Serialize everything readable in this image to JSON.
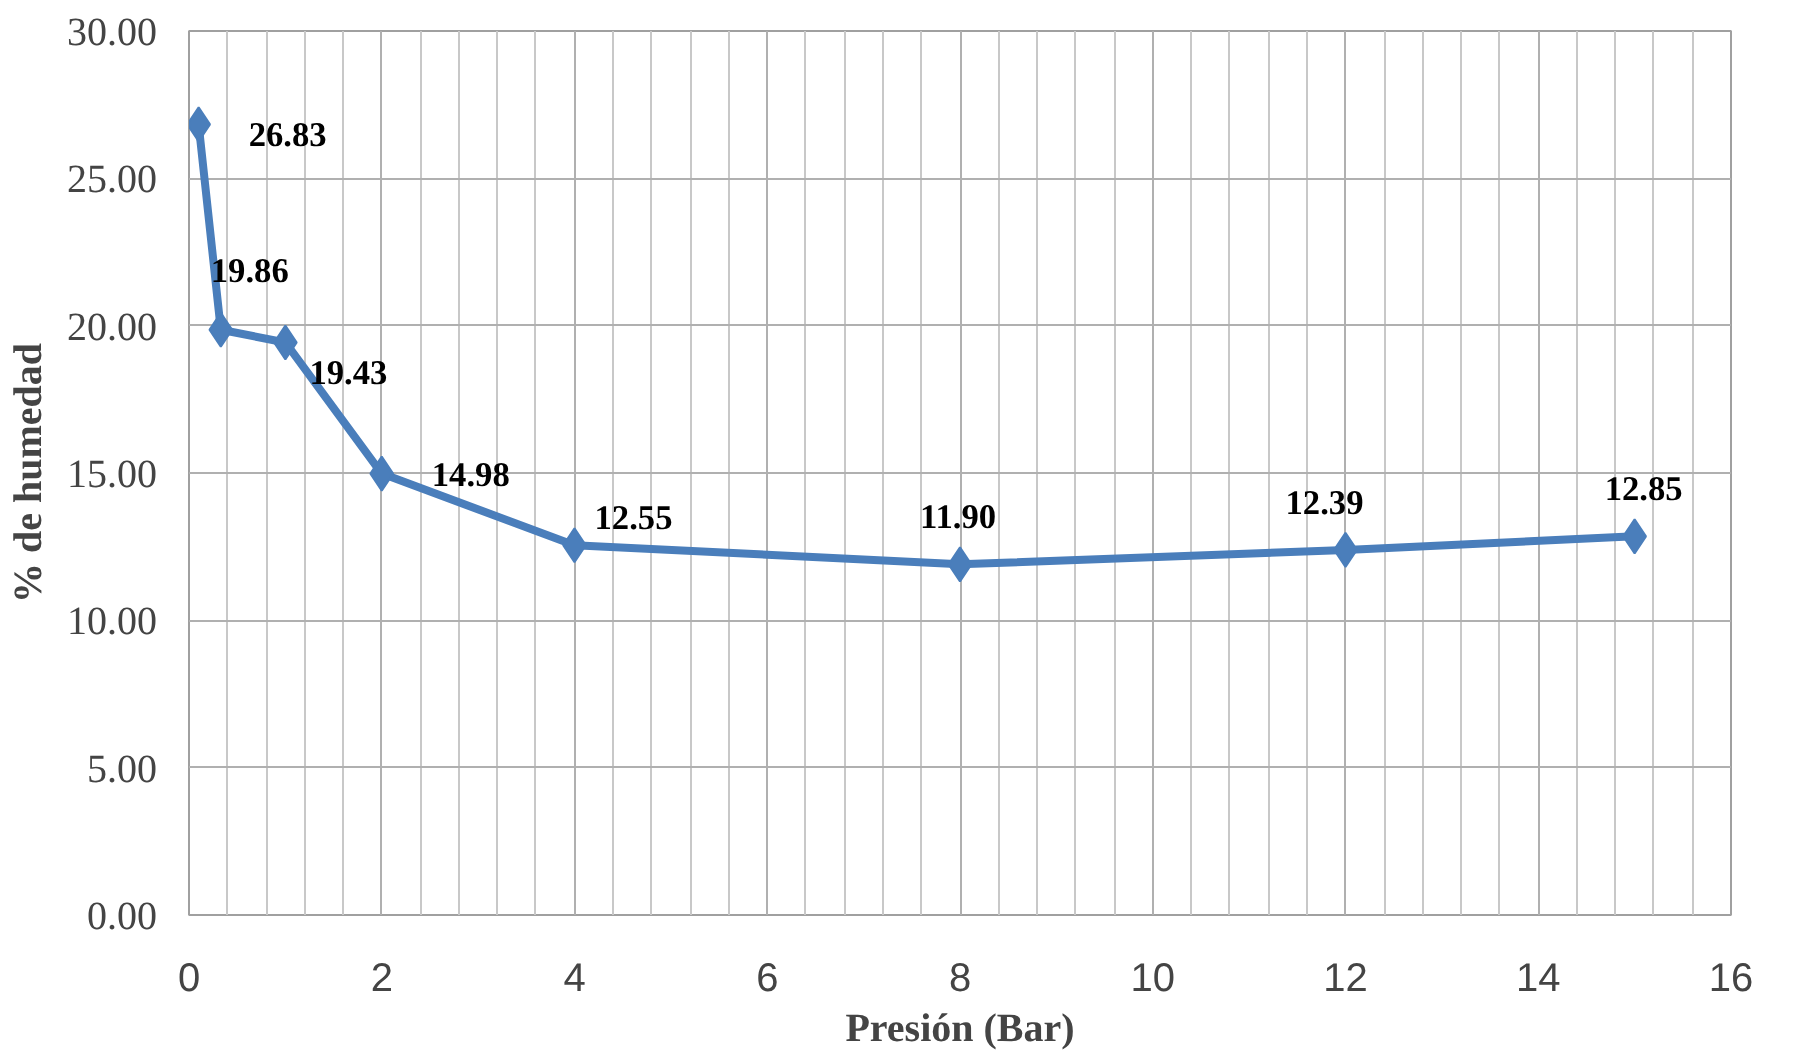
{
  "chart_data": {
    "type": "line",
    "xlabel": "Presión (Bar)",
    "ylabel": "% de humedad",
    "x": [
      0.1,
      0.33,
      1,
      2,
      4,
      8,
      12,
      15
    ],
    "series": [
      {
        "color": "#4a7ebb",
        "values": [
          26.83,
          19.86,
          19.43,
          14.98,
          12.55,
          11.9,
          12.39,
          12.85
        ],
        "value_labels": [
          "26.83",
          "19.86",
          "19.43",
          "14.98",
          "12.55",
          "11.90",
          "12.39",
          "12.85"
        ]
      }
    ],
    "xlim": [
      0,
      16
    ],
    "xticks": [
      0,
      2,
      4,
      6,
      8,
      10,
      12,
      14,
      16
    ],
    "ylim": [
      0,
      30
    ],
    "yticks": [
      {
        "value": 0,
        "label": "0.00"
      },
      {
        "value": 5,
        "label": "5.00"
      },
      {
        "value": 10,
        "label": "10.00"
      },
      {
        "value": 15,
        "label": "15.00"
      },
      {
        "value": 20,
        "label": "20.00"
      },
      {
        "value": 25,
        "label": "25.00"
      },
      {
        "value": 30,
        "label": "30.00"
      }
    ],
    "grid": true,
    "marker": "diamond",
    "line_style": "solid"
  }
}
